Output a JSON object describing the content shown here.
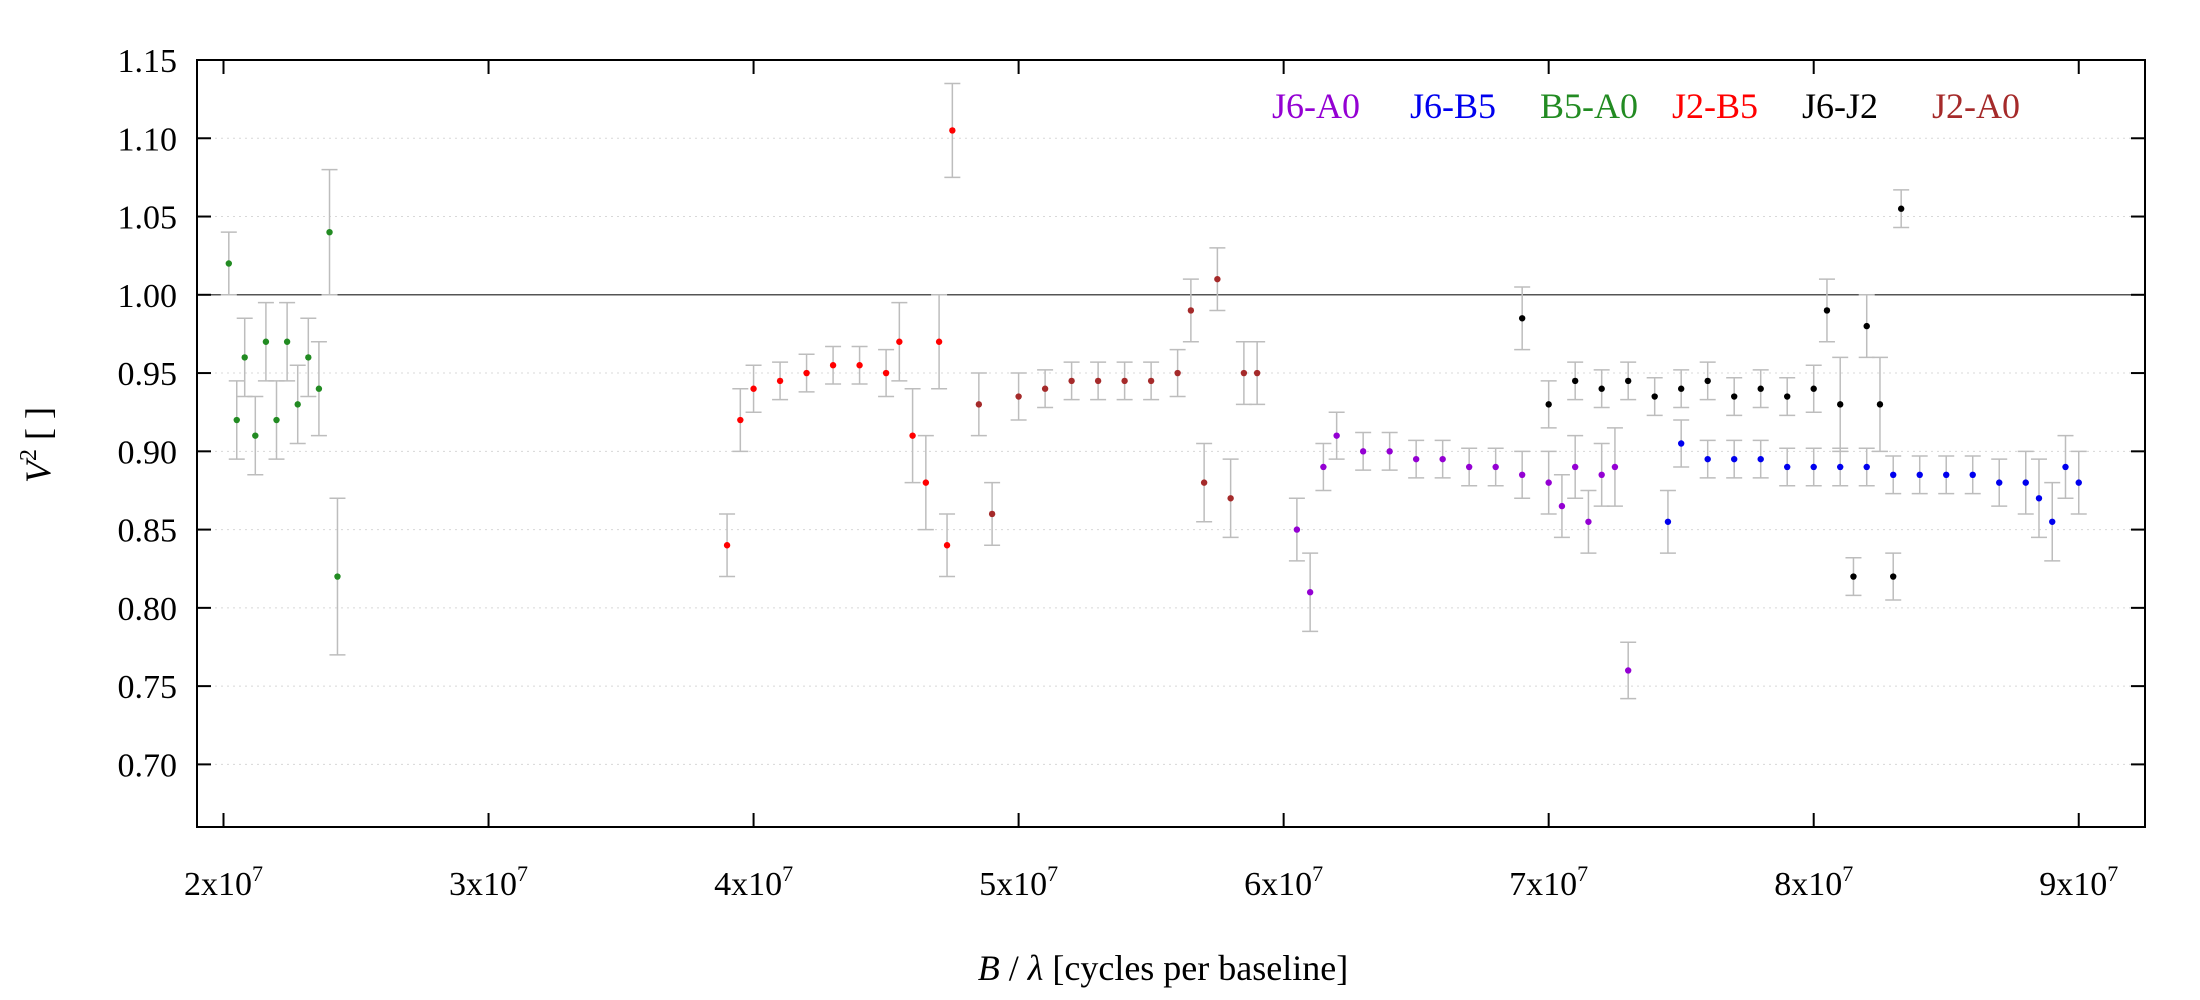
{
  "chart_data": {
    "type": "scatter",
    "title": "",
    "xlabel": {
      "italic": "B",
      "sep": " / ",
      "symbol": "λ",
      "rest": " [cycles per baseline]"
    },
    "ylabel": {
      "base": "V",
      "sup": "2",
      "rest": " [ ]"
    },
    "xlim": [
      19000000,
      92500000
    ],
    "ylim": [
      0.66,
      1.15
    ],
    "xticks": [
      {
        "value": 20000000,
        "mant": "2x10",
        "exp": "7"
      },
      {
        "value": 30000000,
        "mant": "3x10",
        "exp": "7"
      },
      {
        "value": 40000000,
        "mant": "4x10",
        "exp": "7"
      },
      {
        "value": 50000000,
        "mant": "5x10",
        "exp": "7"
      },
      {
        "value": 60000000,
        "mant": "6x10",
        "exp": "7"
      },
      {
        "value": 70000000,
        "mant": "7x10",
        "exp": "7"
      },
      {
        "value": 80000000,
        "mant": "8x10",
        "exp": "7"
      },
      {
        "value": 90000000,
        "mant": "9x10",
        "exp": "7"
      }
    ],
    "yticks": [
      {
        "value": 0.7,
        "label": "0.70"
      },
      {
        "value": 0.75,
        "label": "0.75"
      },
      {
        "value": 0.8,
        "label": "0.80"
      },
      {
        "value": 0.85,
        "label": "0.85"
      },
      {
        "value": 0.9,
        "label": "0.90"
      },
      {
        "value": 0.95,
        "label": "0.95"
      },
      {
        "value": 1.0,
        "label": "1.00"
      },
      {
        "value": 1.05,
        "label": "1.05"
      },
      {
        "value": 1.1,
        "label": "1.10"
      },
      {
        "value": 1.15,
        "label": "1.15"
      }
    ],
    "grid": "horizontal dotted",
    "reference_line": 1.0,
    "legend_position": "top-right",
    "error_bar_color": "#bdbdbd",
    "series": [
      {
        "name": "J6-A0",
        "color": "#9400d3",
        "x": [
          60500000,
          61000000,
          61500000,
          62000000,
          63000000,
          64000000,
          65000000,
          66000000,
          67000000,
          68000000,
          69000000,
          70000000,
          70500000,
          71000000,
          71500000,
          72000000,
          72500000,
          73000000
        ],
        "y": [
          0.85,
          0.81,
          0.89,
          0.91,
          0.9,
          0.9,
          0.895,
          0.895,
          0.89,
          0.89,
          0.885,
          0.88,
          0.865,
          0.89,
          0.855,
          0.885,
          0.89,
          0.76
        ],
        "err": [
          0.02,
          0.025,
          0.015,
          0.015,
          0.012,
          0.012,
          0.012,
          0.012,
          0.012,
          0.012,
          0.015,
          0.02,
          0.02,
          0.02,
          0.02,
          0.02,
          0.025,
          0.018
        ]
      },
      {
        "name": "J6-B5",
        "color": "#0000ee",
        "x": [
          74500000,
          75000000,
          76000000,
          77000000,
          78000000,
          79000000,
          80000000,
          81000000,
          82000000,
          83000000,
          84000000,
          85000000,
          86000000,
          87000000,
          88000000,
          88500000,
          89000000,
          89500000,
          90000000
        ],
        "y": [
          0.855,
          0.905,
          0.895,
          0.895,
          0.895,
          0.89,
          0.89,
          0.89,
          0.89,
          0.885,
          0.885,
          0.885,
          0.885,
          0.88,
          0.88,
          0.87,
          0.855,
          0.89,
          0.88
        ],
        "err": [
          0.02,
          0.015,
          0.012,
          0.012,
          0.012,
          0.012,
          0.012,
          0.012,
          0.012,
          0.012,
          0.012,
          0.012,
          0.012,
          0.015,
          0.02,
          0.025,
          0.025,
          0.02,
          0.02
        ]
      },
      {
        "name": "B5-A0",
        "color": "#228b22",
        "x": [
          20200000,
          20500000,
          20800000,
          21200000,
          21600000,
          22000000,
          22400000,
          22800000,
          23200000,
          23600000,
          24000000,
          24300000
        ],
        "y": [
          1.02,
          0.92,
          0.96,
          0.91,
          0.97,
          0.92,
          0.97,
          0.93,
          0.96,
          0.94,
          1.04,
          0.82
        ],
        "err": [
          0.02,
          0.025,
          0.025,
          0.025,
          0.025,
          0.025,
          0.025,
          0.025,
          0.025,
          0.03,
          0.04,
          0.05
        ]
      },
      {
        "name": "J2-B5",
        "color": "#ff0000",
        "x": [
          39000000,
          39500000,
          40000000,
          41000000,
          42000000,
          43000000,
          44000000,
          45000000,
          45500000,
          46000000,
          46500000,
          47000000,
          47300000,
          47500000
        ],
        "y": [
          0.84,
          0.92,
          0.94,
          0.945,
          0.95,
          0.955,
          0.955,
          0.95,
          0.97,
          0.91,
          0.88,
          0.97,
          0.84,
          1.105
        ],
        "err": [
          0.02,
          0.02,
          0.015,
          0.012,
          0.012,
          0.012,
          0.012,
          0.015,
          0.025,
          0.03,
          0.03,
          0.03,
          0.02,
          0.03
        ]
      },
      {
        "name": "J6-J2",
        "color": "#000000",
        "x": [
          69000000,
          70000000,
          71000000,
          72000000,
          73000000,
          74000000,
          75000000,
          76000000,
          77000000,
          78000000,
          79000000,
          80000000,
          80500000,
          81000000,
          81500000,
          82000000,
          82500000,
          83000000,
          83300000
        ],
        "y": [
          0.985,
          0.93,
          0.945,
          0.94,
          0.945,
          0.935,
          0.94,
          0.945,
          0.935,
          0.94,
          0.935,
          0.94,
          0.99,
          0.93,
          0.82,
          0.98,
          0.93,
          0.82,
          1.055
        ],
        "err": [
          0.02,
          0.015,
          0.012,
          0.012,
          0.012,
          0.012,
          0.012,
          0.012,
          0.012,
          0.012,
          0.012,
          0.015,
          0.02,
          0.03,
          0.012,
          0.02,
          0.03,
          0.015,
          0.012
        ]
      },
      {
        "name": "J2-A0",
        "color": "#a52a2a",
        "x": [
          48500000,
          49000000,
          50000000,
          51000000,
          52000000,
          53000000,
          54000000,
          55000000,
          56000000,
          56500000,
          57000000,
          57500000,
          58000000,
          58500000,
          59000000
        ],
        "y": [
          0.93,
          0.86,
          0.935,
          0.94,
          0.945,
          0.945,
          0.945,
          0.945,
          0.95,
          0.99,
          0.88,
          1.01,
          0.87,
          0.95,
          0.95
        ],
        "err": [
          0.02,
          0.02,
          0.015,
          0.012,
          0.012,
          0.012,
          0.012,
          0.012,
          0.015,
          0.02,
          0.025,
          0.02,
          0.025,
          0.02,
          0.02
        ]
      }
    ]
  }
}
